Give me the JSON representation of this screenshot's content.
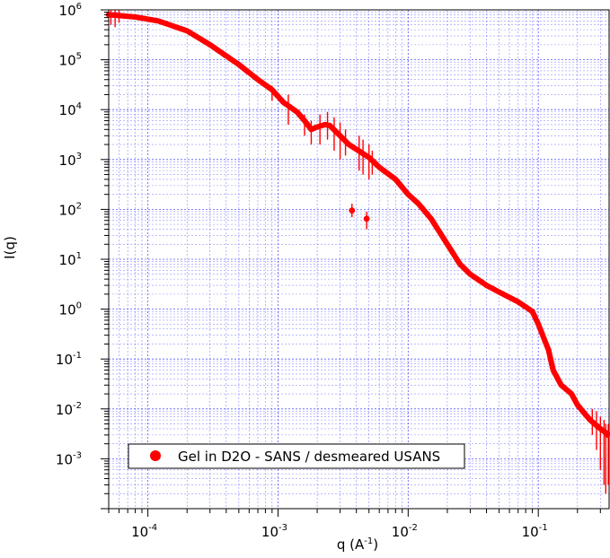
{
  "chart_data": {
    "type": "scatter",
    "xscale": "log",
    "yscale": "log",
    "xlim": [
      5e-05,
      0.35
    ],
    "ylim": [
      0.0001,
      1000000
    ],
    "grid": true,
    "xlabel": {
      "base": "q (A",
      "sup": "-1",
      "tail": ")"
    },
    "ylabel": "I(q)",
    "x_ticks": [
      {
        "base": "10",
        "exp": "-4",
        "value": 0.0001
      },
      {
        "base": "10",
        "exp": "-3",
        "value": 0.001
      },
      {
        "base": "10",
        "exp": "-2",
        "value": 0.01
      },
      {
        "base": "10",
        "exp": "-1",
        "value": 0.1
      }
    ],
    "y_ticks": [
      {
        "base": "10",
        "exp": "6",
        "value": 1000000
      },
      {
        "base": "10",
        "exp": "5",
        "value": 100000
      },
      {
        "base": "10",
        "exp": "4",
        "value": 10000
      },
      {
        "base": "10",
        "exp": "3",
        "value": 1000
      },
      {
        "base": "10",
        "exp": "2",
        "value": 100
      },
      {
        "base": "10",
        "exp": "1",
        "value": 10
      },
      {
        "base": "10",
        "exp": "0",
        "value": 1
      },
      {
        "base": "10",
        "exp": "-1",
        "value": 0.1
      },
      {
        "base": "10",
        "exp": "-2",
        "value": 0.01
      },
      {
        "base": "10",
        "exp": "-3",
        "value": 0.001
      }
    ],
    "legend_position": "bottom-left",
    "series": [
      {
        "name": "Gel in D2O - SANS / desmeared USANS",
        "color": "#ff0000",
        "curve": [
          [
            5e-05,
            800000
          ],
          [
            8e-05,
            720000
          ],
          [
            0.00012,
            600000
          ],
          [
            0.0002,
            380000
          ],
          [
            0.0003,
            200000
          ],
          [
            0.0005,
            80000
          ],
          [
            0.0007,
            40000
          ],
          [
            0.0009,
            25000
          ],
          [
            0.0011,
            14000
          ],
          [
            0.0014,
            9000
          ],
          [
            0.0016,
            6000
          ],
          [
            0.0018,
            4000
          ],
          [
            0.002,
            4500
          ],
          [
            0.0023,
            5000
          ],
          [
            0.0025,
            4800
          ],
          [
            0.003,
            3000
          ],
          [
            0.0035,
            2000
          ],
          [
            0.004,
            1600
          ],
          [
            0.005,
            1100
          ],
          [
            0.006,
            700
          ],
          [
            0.008,
            400
          ],
          [
            0.01,
            200
          ],
          [
            0.012,
            130
          ],
          [
            0.015,
            65
          ],
          [
            0.02,
            20
          ],
          [
            0.025,
            8
          ],
          [
            0.03,
            5
          ],
          [
            0.04,
            3
          ],
          [
            0.05,
            2.2
          ],
          [
            0.07,
            1.4
          ],
          [
            0.09,
            0.9
          ],
          [
            0.1,
            0.5
          ],
          [
            0.12,
            0.15
          ],
          [
            0.13,
            0.06
          ],
          [
            0.15,
            0.03
          ],
          [
            0.18,
            0.02
          ],
          [
            0.2,
            0.012
          ],
          [
            0.25,
            0.006
          ],
          [
            0.3,
            0.004
          ],
          [
            0.35,
            0.003
          ]
        ],
        "outliers": [
          [
            0.0037,
            95
          ],
          [
            0.0048,
            65
          ]
        ],
        "error_bars": [
          {
            "x": 5.2e-05,
            "y": 800000,
            "lo": 500000,
            "hi": 1100000
          },
          {
            "x": 5.6e-05,
            "y": 790000,
            "lo": 450000,
            "hi": 1100000
          },
          {
            "x": 6e-05,
            "y": 780000,
            "lo": 550000,
            "hi": 1000000
          },
          {
            "x": 0.0009,
            "y": 25000,
            "lo": 15000,
            "hi": 30000
          },
          {
            "x": 0.0012,
            "y": 12000,
            "lo": 5000,
            "hi": 20000
          },
          {
            "x": 0.0016,
            "y": 6000,
            "lo": 3000,
            "hi": 8000
          },
          {
            "x": 0.0018,
            "y": 4000,
            "lo": 2000,
            "hi": 6000
          },
          {
            "x": 0.0021,
            "y": 4600,
            "lo": 2000,
            "hi": 8000
          },
          {
            "x": 0.0024,
            "y": 5000,
            "lo": 2500,
            "hi": 9000
          },
          {
            "x": 0.0027,
            "y": 4000,
            "lo": 1500,
            "hi": 7000
          },
          {
            "x": 0.003,
            "y": 3000,
            "lo": 1000,
            "hi": 5500
          },
          {
            "x": 0.0033,
            "y": 2500,
            "lo": 1200,
            "hi": 4000
          },
          {
            "x": 0.0037,
            "y": 95,
            "lo": 70,
            "hi": 130
          },
          {
            "x": 0.0042,
            "y": 1800,
            "lo": 600,
            "hi": 3000
          },
          {
            "x": 0.0045,
            "y": 1500,
            "lo": 500,
            "hi": 2500
          },
          {
            "x": 0.0048,
            "y": 65,
            "lo": 40,
            "hi": 90
          },
          {
            "x": 0.005,
            "y": 1100,
            "lo": 400,
            "hi": 2000
          },
          {
            "x": 0.0053,
            "y": 1000,
            "lo": 500,
            "hi": 1500
          },
          {
            "x": 0.26,
            "y": 0.006,
            "lo": 0.003,
            "hi": 0.01
          },
          {
            "x": 0.28,
            "y": 0.005,
            "lo": 0.0015,
            "hi": 0.009
          },
          {
            "x": 0.3,
            "y": 0.004,
            "lo": 0.0006,
            "hi": 0.007
          },
          {
            "x": 0.32,
            "y": 0.0035,
            "lo": 0.0003,
            "hi": 0.006
          },
          {
            "x": 0.33,
            "y": 0.003,
            "lo": 0.0002,
            "hi": 0.005
          },
          {
            "x": 0.345,
            "y": 0.003,
            "lo": 0.0003,
            "hi": 0.005
          }
        ]
      }
    ]
  }
}
